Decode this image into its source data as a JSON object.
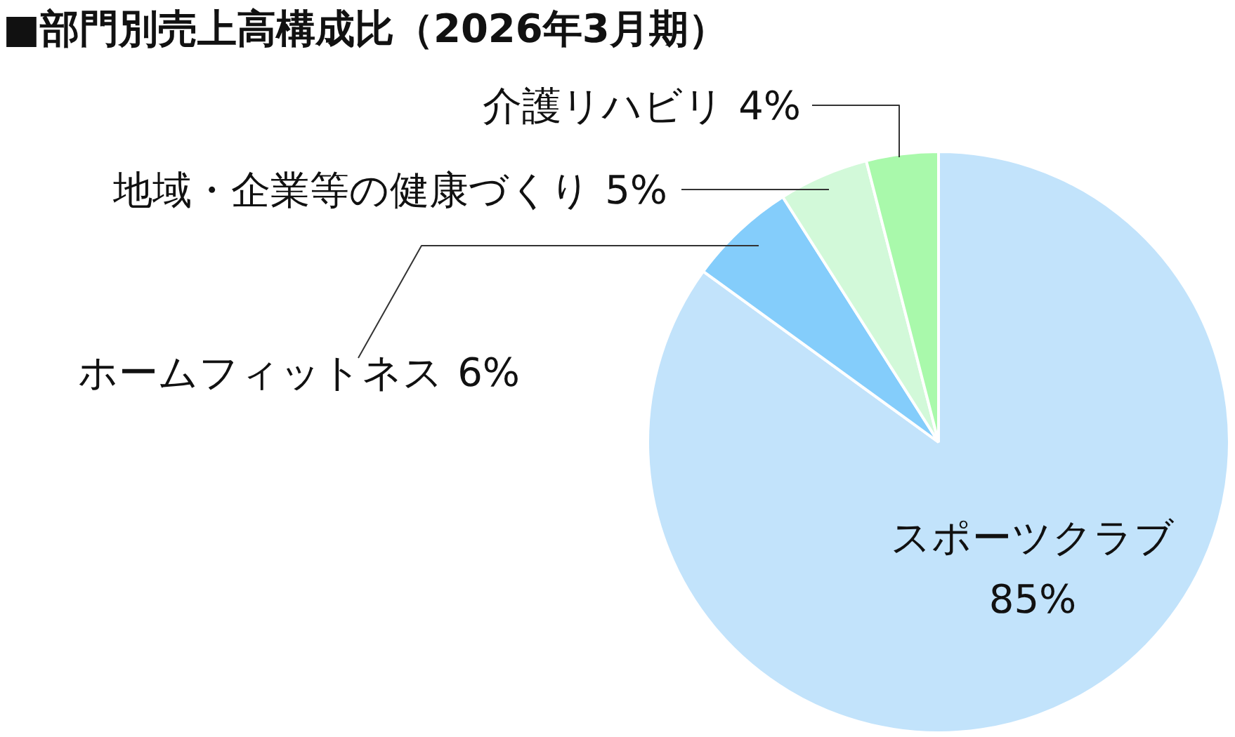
{
  "chart_data": {
    "type": "pie",
    "title": "■部門別売上高構成比（2026年3月期）",
    "categories": [
      "スポーツクラブ",
      "ホームフィットネス",
      "地域・企業等の健康づくり",
      "介護リハビリ"
    ],
    "values": [
      85,
      6,
      5,
      4
    ],
    "colors": [
      "#c2e3fb",
      "#84cdfb",
      "#d2f9d9",
      "#a9f9ab"
    ],
    "value_labels": [
      "85%",
      "6%",
      "5%",
      "4%"
    ],
    "legend": false
  }
}
